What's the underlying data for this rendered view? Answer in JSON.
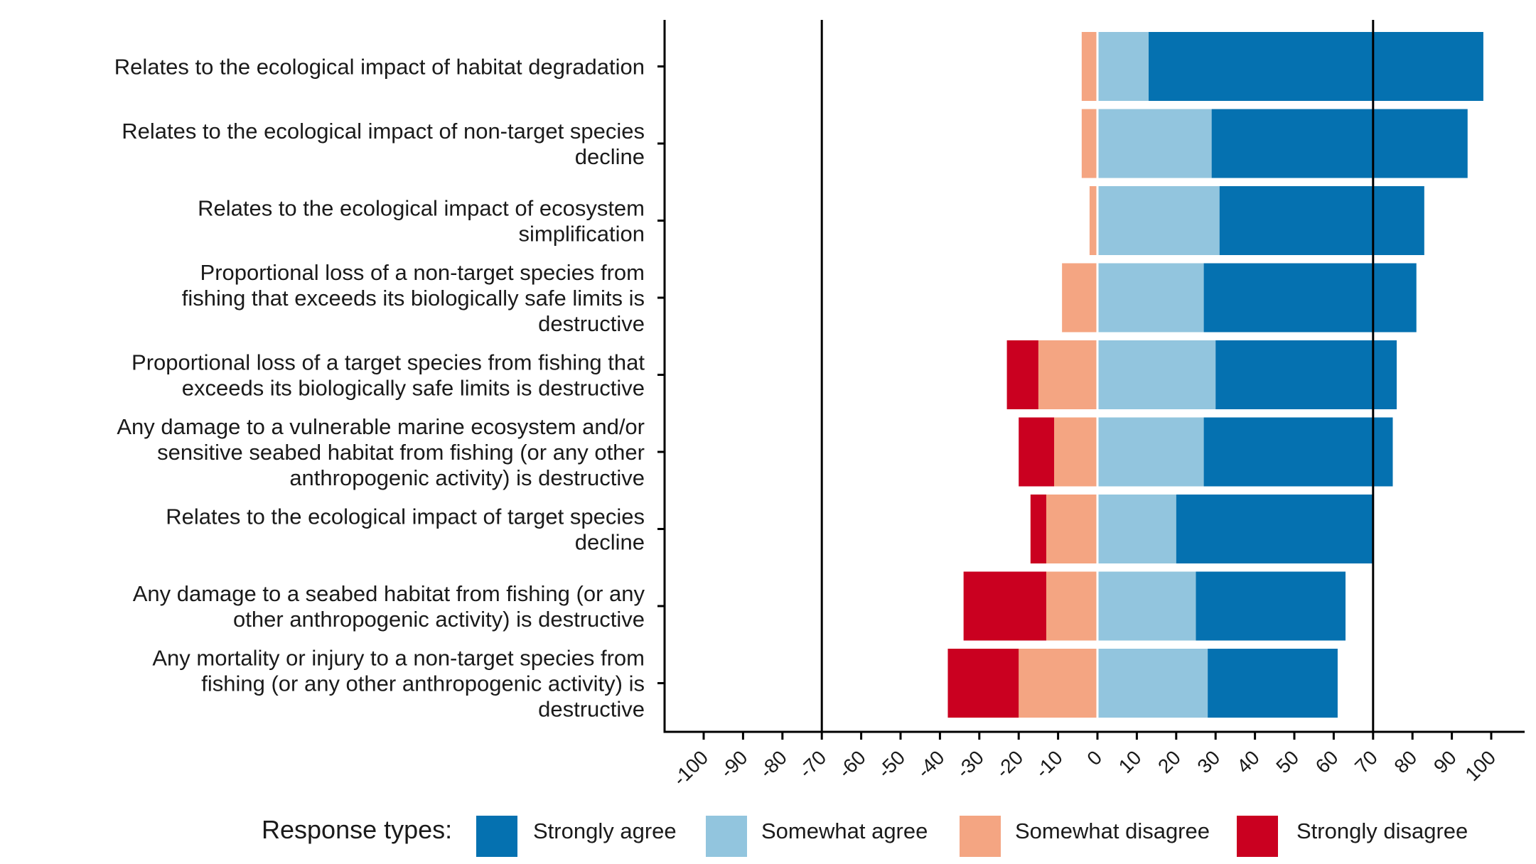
{
  "chart_data": {
    "type": "bar",
    "orientation": "horizontal",
    "stacking": "diverging",
    "categories": [
      [
        "Relates to the ecological impact of habitat degradation"
      ],
      [
        "Relates to the ecological impact of non-target species",
        "decline"
      ],
      [
        "Relates to the ecological impact of ecosystem",
        "simplification"
      ],
      [
        "Proportional loss of a non-target species from",
        "fishing that exceeds its biologically safe limits is",
        "destructive"
      ],
      [
        "Proportional loss of a target species from fishing that",
        "exceeds its biologically safe limits is destructive"
      ],
      [
        "Any damage to a vulnerable marine ecosystem and/or",
        "sensitive seabed habitat from fishing (or any other",
        "anthropogenic activity) is destructive"
      ],
      [
        "Relates to the ecological impact of target species",
        "decline"
      ],
      [
        "Any damage to a seabed habitat from fishing (or any",
        "other anthropogenic activity) is destructive"
      ],
      [
        "Any mortality or injury to a non-target species from",
        "fishing (or any other anthropogenic activity) is",
        "destructive"
      ]
    ],
    "series": [
      {
        "name": "Strongly agree",
        "color": "#0571b0",
        "values": [
          85,
          65,
          52,
          54,
          46,
          48,
          50,
          38,
          33
        ]
      },
      {
        "name": "Somewhat agree",
        "color": "#92c5de",
        "values": [
          13,
          29,
          31,
          27,
          30,
          27,
          20,
          25,
          28
        ]
      },
      {
        "name": "Somewhat disagree",
        "color": "#f4a582",
        "values": [
          4,
          4,
          2,
          9,
          15,
          11,
          13,
          13,
          20
        ]
      },
      {
        "name": "Strongly disagree",
        "color": "#ca0020",
        "values": [
          0,
          0,
          0,
          0,
          8,
          9,
          4,
          21,
          18
        ]
      }
    ],
    "xlim": [
      -100,
      100
    ],
    "xticks": [
      -100,
      -90,
      -80,
      -70,
      -60,
      -50,
      -40,
      -30,
      -20,
      -10,
      0,
      10,
      20,
      30,
      40,
      50,
      60,
      70,
      80,
      90,
      100
    ],
    "reference_lines": [
      -70,
      70
    ],
    "title": "",
    "xlabel": "",
    "ylabel": "",
    "grid": false,
    "legend": {
      "title": "Response types:",
      "position": "bottom"
    }
  }
}
